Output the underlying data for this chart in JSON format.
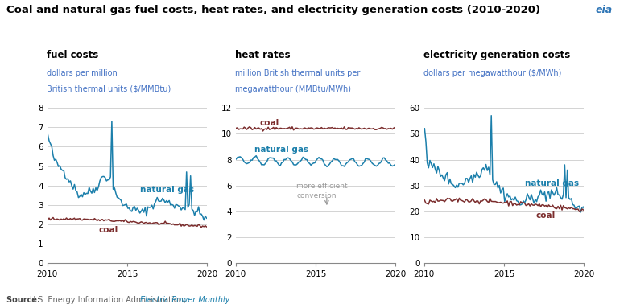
{
  "title": "Coal and natural gas fuel costs, heat rates, and electricity generation costs (2010-2020)",
  "panels": [
    {
      "subtitle": "fuel costs",
      "ylabel_line1": "dollars per million",
      "ylabel_line2": "British thermal units ($/MMBtu)",
      "ylim": [
        0,
        8
      ],
      "yticks": [
        0,
        1,
        2,
        3,
        4,
        5,
        6,
        7,
        8
      ],
      "xlim": [
        2010,
        2020
      ],
      "xticks": [
        2010,
        2015,
        2020
      ]
    },
    {
      "subtitle": "heat rates",
      "ylabel_line1": "million British thermal units per",
      "ylabel_line2": "megawatthour (MMBtu/MWh)",
      "ylim": [
        0,
        12
      ],
      "yticks": [
        0,
        2,
        4,
        6,
        8,
        10,
        12
      ],
      "xlim": [
        2010,
        2020
      ],
      "xticks": [
        2010,
        2015,
        2020
      ]
    },
    {
      "subtitle": "electricity generation costs",
      "ylabel_line1": "dollars per megawatthour ($/MWh)",
      "ylabel_line2": "",
      "ylim": [
        0,
        60
      ],
      "yticks": [
        0,
        10,
        20,
        30,
        40,
        50,
        60
      ],
      "xlim": [
        2010,
        2020
      ],
      "xticks": [
        2010,
        2015,
        2020
      ]
    }
  ],
  "coal_color": "#7B2D2D",
  "gas_color": "#1B7FAB",
  "annotation_color": "#999999",
  "source_bold": "Source: ",
  "source_normal": "U.S. Energy Information Administration, ",
  "source_italic": "Electric Power Monthly",
  "background_color": "#FFFFFF",
  "grid_color": "#CCCCCC",
  "title_fontsize": 9.5,
  "subtitle_fontsize": 8.5,
  "ylabel_fontsize": 7.0,
  "tick_fontsize": 7.5,
  "label_fontsize": 7.5,
  "source_fontsize": 7.0
}
